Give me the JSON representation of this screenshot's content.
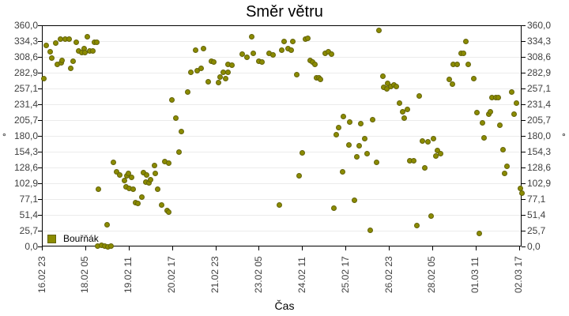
{
  "title": "Směr větru",
  "colors": {
    "marker": "#8b8b00",
    "marker_border": "#64640a",
    "grid": "#ebebeb",
    "axis": "#000000",
    "tick_label": "#404040",
    "background": "#ffffff"
  },
  "chart_data": {
    "type": "scatter",
    "title": "Směr větru",
    "xlabel": "Čas",
    "ylabel": "°",
    "legend": [
      "Bouřňák"
    ],
    "legend_position": "inside-bottom-left",
    "grid": "horizontal-only",
    "ylim": [
      0,
      360
    ],
    "y_tick_step": 25.7,
    "y_tick_labels": [
      "360,0",
      "334,3",
      "308,6",
      "282,9",
      "257,1",
      "231,4",
      "205,7",
      "180,0",
      "154,3",
      "128,6",
      "102,9",
      "77,1",
      "51,4",
      "25,7",
      "0,0"
    ],
    "x_tick_labels": [
      "16.02 23",
      "18.02 05",
      "19.02 11",
      "20.02 17",
      "21.02 23",
      "23.02 05",
      "24.02 11",
      "25.02 17",
      "26.02 23",
      "28.02 05",
      "01.03 11",
      "02.03 17"
    ],
    "x_start": "16.02 23:00",
    "x_tick_interval_hours": 30,
    "x_unit": "hours since 16.02 23:00",
    "y_unit": "degrees",
    "series": [
      {
        "name": "Bouřňák",
        "color": "#8b8b00",
        "points": [
          [
            1.6,
            273
          ],
          [
            2.9,
            327
          ],
          [
            5.6,
            317
          ],
          [
            6.7,
            307
          ],
          [
            9.3,
            331
          ],
          [
            10.8,
            297
          ],
          [
            13,
            337
          ],
          [
            13.3,
            299
          ],
          [
            14,
            303
          ],
          [
            16,
            337
          ],
          [
            18.8,
            337
          ],
          [
            19.8,
            290
          ],
          [
            21.7,
            301
          ],
          [
            23.9,
            333
          ],
          [
            25.3,
            318
          ],
          [
            27.5,
            316
          ],
          [
            29,
            322
          ],
          [
            29.7,
            316
          ],
          [
            31.5,
            342
          ],
          [
            33,
            318
          ],
          [
            35.2,
            318
          ],
          [
            36.6,
            333
          ],
          [
            38.1,
            332
          ],
          [
            38.6,
            1
          ],
          [
            39.2,
            93
          ],
          [
            41,
            2
          ],
          [
            43.2,
            1
          ],
          [
            45.2,
            35
          ],
          [
            45.9,
            0
          ],
          [
            47.7,
            1
          ],
          [
            49.6,
            137
          ],
          [
            51.6,
            121
          ],
          [
            53.7,
            117
          ],
          [
            56.9,
            107
          ],
          [
            58.3,
            97
          ],
          [
            58.7,
            115
          ],
          [
            60.1,
            119
          ],
          [
            60.5,
            95
          ],
          [
            62.3,
            112
          ],
          [
            63.4,
            93
          ],
          [
            64.7,
            71
          ],
          [
            66.5,
            70
          ],
          [
            68.9,
            80
          ],
          [
            70.1,
            120
          ],
          [
            72,
            105
          ],
          [
            72.5,
            117
          ],
          [
            74.3,
            103
          ],
          [
            75.1,
            109
          ],
          [
            77.8,
            132
          ],
          [
            78.3,
            119
          ],
          [
            80.2,
            93
          ],
          [
            82.9,
            68
          ],
          [
            84.9,
            138
          ],
          [
            86.5,
            58
          ],
          [
            87.9,
            56
          ],
          [
            88,
            136
          ],
          [
            89.7,
            239
          ],
          [
            92.4,
            209
          ],
          [
            94.8,
            154
          ],
          [
            96.6,
            187
          ],
          [
            101.1,
            252
          ],
          [
            103.3,
            283
          ],
          [
            106.2,
            319
          ],
          [
            107.5,
            286
          ],
          [
            110.3,
            290
          ],
          [
            111.7,
            322
          ],
          [
            115.3,
            268
          ],
          [
            117.2,
            302
          ],
          [
            119,
            300
          ],
          [
            122.1,
            267
          ],
          [
            123.4,
            276
          ],
          [
            125.2,
            284
          ],
          [
            127,
            273
          ],
          [
            128.5,
            284
          ],
          [
            128.5,
            297
          ],
          [
            131.2,
            295
          ],
          [
            138.5,
            313
          ],
          [
            141.6,
            308
          ],
          [
            144.9,
            341
          ],
          [
            146.3,
            314
          ],
          [
            150.3,
            302
          ],
          [
            152.5,
            300
          ],
          [
            157.3,
            315
          ],
          [
            159.8,
            312
          ],
          [
            164,
            67
          ],
          [
            165.8,
            320
          ],
          [
            167.3,
            334
          ],
          [
            170.2,
            322
          ],
          [
            172.7,
            320
          ],
          [
            173.3,
            334
          ],
          [
            176.4,
            280
          ],
          [
            178.2,
            115
          ],
          [
            180,
            152
          ],
          [
            182.4,
            337
          ],
          [
            184.2,
            339
          ],
          [
            185.5,
            303
          ],
          [
            187.3,
            300
          ],
          [
            188.8,
            297
          ],
          [
            189.7,
            275
          ],
          [
            191.5,
            274
          ],
          [
            192.8,
            272
          ],
          [
            196.1,
            315
          ],
          [
            198.3,
            317
          ],
          [
            200.1,
            313
          ],
          [
            201.9,
            63
          ],
          [
            203.8,
            182
          ],
          [
            205.2,
            193
          ],
          [
            207.9,
            122
          ],
          [
            208.8,
            212
          ],
          [
            212.1,
            165
          ],
          [
            212.8,
            202
          ],
          [
            216.1,
            75
          ],
          [
            217.9,
            146
          ],
          [
            219.7,
            164
          ],
          [
            220.7,
            200
          ],
          [
            223.4,
            176
          ],
          [
            225.2,
            151
          ],
          [
            227.4,
            26
          ],
          [
            228.9,
            207
          ],
          [
            231.6,
            137
          ],
          [
            232.9,
            352
          ],
          [
            235.8,
            277
          ],
          [
            236.5,
            259
          ],
          [
            238.5,
            256
          ],
          [
            238.9,
            265
          ],
          [
            241.6,
            260
          ],
          [
            243.8,
            263
          ],
          [
            244.9,
            260
          ],
          [
            247.1,
            234
          ],
          [
            249.3,
            219
          ],
          [
            250.7,
            209
          ],
          [
            252.9,
            223
          ],
          [
            254.3,
            140
          ],
          [
            257.1,
            140
          ],
          [
            259.4,
            34
          ],
          [
            261.1,
            245
          ],
          [
            263.1,
            172
          ],
          [
            264.9,
            128
          ],
          [
            267.1,
            170
          ],
          [
            269.3,
            49
          ],
          [
            271.1,
            176
          ],
          [
            272.6,
            147
          ],
          [
            273.5,
            156
          ],
          [
            275.9,
            151
          ],
          [
            281.7,
            272
          ],
          [
            284.1,
            264
          ],
          [
            284.4,
            296
          ],
          [
            287.2,
            296
          ],
          [
            289.9,
            315
          ],
          [
            291.8,
            314
          ],
          [
            293.2,
            334
          ],
          [
            295,
            296
          ],
          [
            298.7,
            273
          ],
          [
            301.2,
            218
          ],
          [
            302.7,
            21
          ],
          [
            304.9,
            201
          ],
          [
            306,
            177
          ],
          [
            309.1,
            216
          ],
          [
            310.4,
            219
          ],
          [
            311.5,
            242
          ],
          [
            314,
            242
          ],
          [
            315.5,
            242
          ],
          [
            316.9,
            197
          ],
          [
            318.7,
            157
          ],
          [
            320,
            119
          ],
          [
            321.9,
            131
          ],
          [
            324.9,
            251
          ],
          [
            326.4,
            216
          ],
          [
            328.2,
            233
          ],
          [
            331,
            94
          ],
          [
            331.9,
            87
          ]
        ]
      }
    ]
  }
}
